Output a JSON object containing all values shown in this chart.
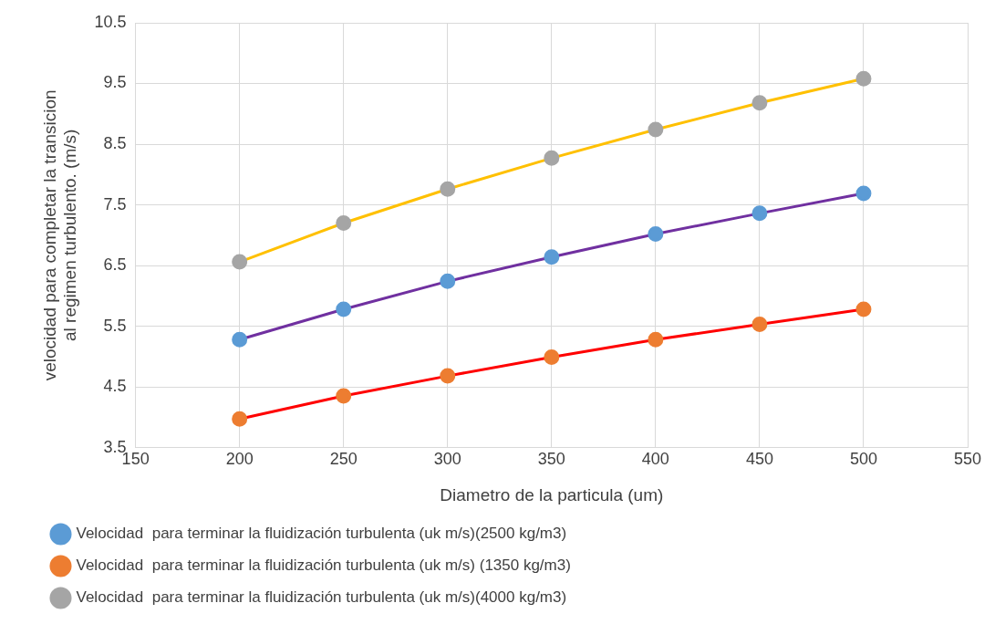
{
  "chart_data": {
    "type": "line",
    "xlabel": "Diametro de la particula (um)",
    "ylabel": "velocidad para completar la transicion al regimen turbulento. (m/s)",
    "x": [
      200,
      250,
      300,
      350,
      400,
      450,
      500
    ],
    "series": [
      {
        "name": "Velocidad  para terminar la fluidización turbulenta (uk m/s)(2500 kg/m3)",
        "color": "#7030a0",
        "colors": [
          "#5b9bd5",
          "#5b9bd5",
          "#5b9bd5",
          "#5b9bd5",
          "#5b9bd5",
          "#5b9bd5",
          "#5b9bd5"
        ],
        "values": [
          5.28,
          5.78,
          6.24,
          6.64,
          7.02,
          7.36,
          7.69
        ]
      },
      {
        "name": "Velocidad  para terminar la fluidización turbulenta (uk m/s) (1350 kg/m3)",
        "color": "#ff0000",
        "colors": [
          "#ed7d31",
          "#ed7d31",
          "#ed7d31",
          "#ed7d31",
          "#ed7d31",
          "#ed7d31",
          "#ed7d31"
        ],
        "values": [
          3.97,
          4.35,
          4.68,
          4.99,
          5.28,
          5.53,
          5.78
        ]
      },
      {
        "name": "Velocidad  para terminar la fluidización turbulenta (uk m/s)(4000 kg/m3)",
        "color": "#ffc000",
        "colors": [
          "#a5a5a5",
          "#a5a5a5",
          "#a5a5a5",
          "#a5a5a5",
          "#a5a5a5",
          "#a5a5a5",
          "#a5a5a5"
        ],
        "values": [
          6.56,
          7.2,
          7.76,
          8.27,
          8.74,
          9.18,
          9.58
        ]
      }
    ],
    "xlim": [
      150,
      550
    ],
    "xticks": [
      150,
      200,
      250,
      300,
      350,
      400,
      450,
      500,
      550
    ],
    "ylim": [
      3.5,
      10.5
    ],
    "yticks": [
      3.5,
      4.5,
      5.5,
      6.5,
      7.5,
      8.5,
      9.5,
      10.5
    ],
    "grid": true,
    "legend": "bottom",
    "marker": "circle",
    "line_style": "solid"
  }
}
